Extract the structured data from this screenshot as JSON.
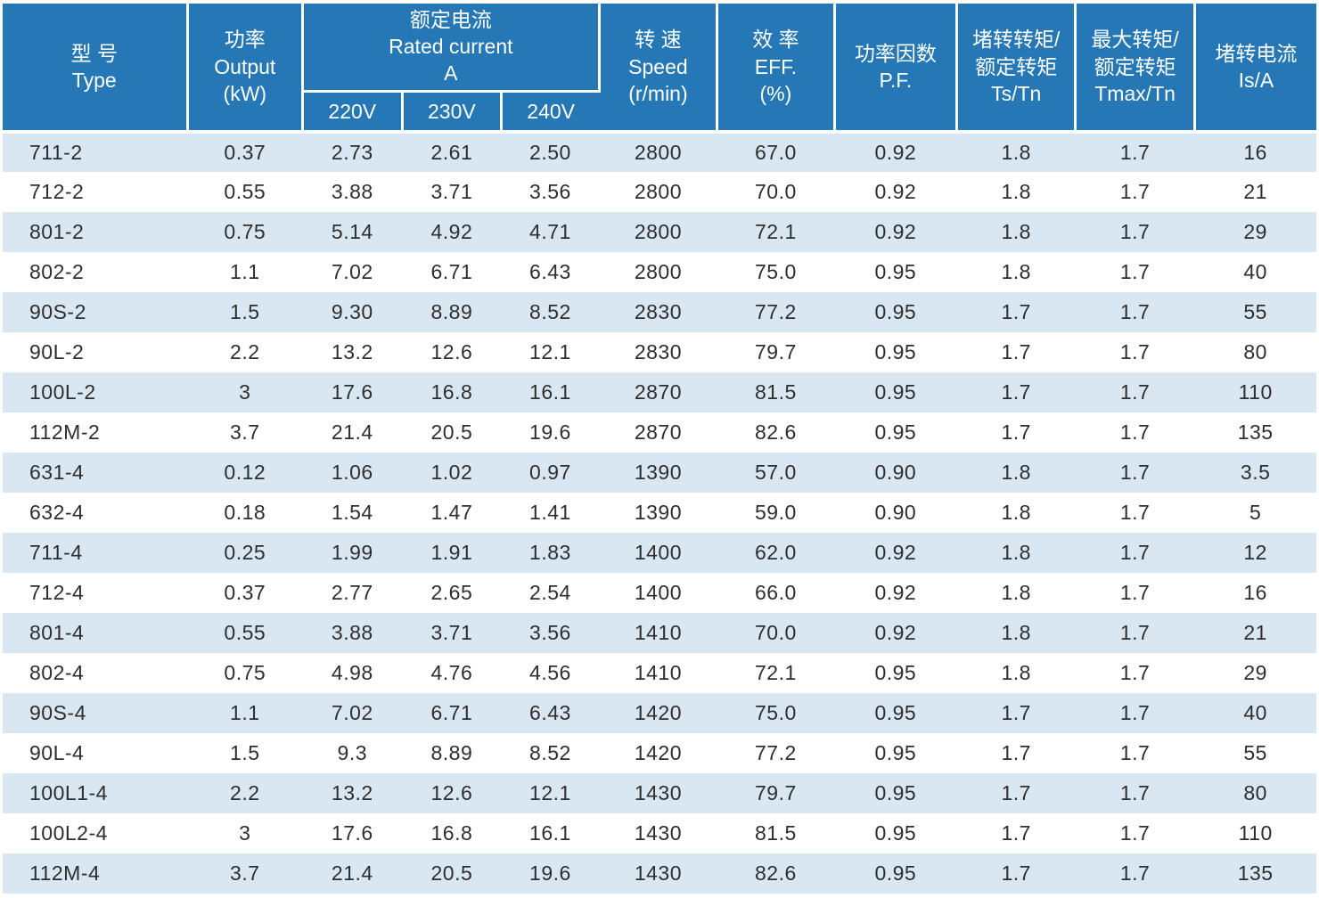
{
  "title": "Motor specification table",
  "colors": {
    "header_bg": "#2578b5",
    "header_text": "#ffffff",
    "row_alt_bg": "#d9e7f2",
    "row_bg": "#ffffff",
    "text": "#2e2e2e"
  },
  "table": {
    "header": {
      "type": "型 号\nType",
      "output": "功率\nOutput\n(kW)",
      "rated_current": "额定电流\nRated current\nA",
      "v220": "220V",
      "v230": "230V",
      "v240": "240V",
      "speed": "转 速\nSpeed\n(r/min)",
      "eff": "效 率\nEFF.\n(%)",
      "pf": "功率因数\nP.F.",
      "ts_tn": "堵转转矩/\n额定转矩\nTs/Tn",
      "tmax_tn": "最大转矩/\n额定转矩\nTmax/Tn",
      "is_a": "堵转电流\nIs/A"
    },
    "column_keys": [
      "type",
      "output",
      "current_220v",
      "current_230v",
      "current_240v",
      "speed",
      "eff",
      "pf",
      "ts_tn",
      "tmax_tn",
      "is_a"
    ],
    "rows": [
      [
        "711-2",
        "0.37",
        "2.73",
        "2.61",
        "2.50",
        "2800",
        "67.0",
        "0.92",
        "1.8",
        "1.7",
        "16"
      ],
      [
        "712-2",
        "0.55",
        "3.88",
        "3.71",
        "3.56",
        "2800",
        "70.0",
        "0.92",
        "1.8",
        "1.7",
        "21"
      ],
      [
        "801-2",
        "0.75",
        "5.14",
        "4.92",
        "4.71",
        "2800",
        "72.1",
        "0.92",
        "1.8",
        "1.7",
        "29"
      ],
      [
        "802-2",
        "1.1",
        "7.02",
        "6.71",
        "6.43",
        "2800",
        "75.0",
        "0.95",
        "1.8",
        "1.7",
        "40"
      ],
      [
        "90S-2",
        "1.5",
        "9.30",
        "8.89",
        "8.52",
        "2830",
        "77.2",
        "0.95",
        "1.7",
        "1.7",
        "55"
      ],
      [
        "90L-2",
        "2.2",
        "13.2",
        "12.6",
        "12.1",
        "2830",
        "79.7",
        "0.95",
        "1.7",
        "1.7",
        "80"
      ],
      [
        "100L-2",
        "3",
        "17.6",
        "16.8",
        "16.1",
        "2870",
        "81.5",
        "0.95",
        "1.7",
        "1.7",
        "110"
      ],
      [
        "112M-2",
        "3.7",
        "21.4",
        "20.5",
        "19.6",
        "2870",
        "82.6",
        "0.95",
        "1.7",
        "1.7",
        "135"
      ],
      [
        "631-4",
        "0.12",
        "1.06",
        "1.02",
        "0.97",
        "1390",
        "57.0",
        "0.90",
        "1.8",
        "1.7",
        "3.5"
      ],
      [
        "632-4",
        "0.18",
        "1.54",
        "1.47",
        "1.41",
        "1390",
        "59.0",
        "0.90",
        "1.8",
        "1.7",
        "5"
      ],
      [
        "711-4",
        "0.25",
        "1.99",
        "1.91",
        "1.83",
        "1400",
        "62.0",
        "0.92",
        "1.8",
        "1.7",
        "12"
      ],
      [
        "712-4",
        "0.37",
        "2.77",
        "2.65",
        "2.54",
        "1400",
        "66.0",
        "0.92",
        "1.8",
        "1.7",
        "16"
      ],
      [
        "801-4",
        "0.55",
        "3.88",
        "3.71",
        "3.56",
        "1410",
        "70.0",
        "0.92",
        "1.8",
        "1.7",
        "21"
      ],
      [
        "802-4",
        "0.75",
        "4.98",
        "4.76",
        "4.56",
        "1410",
        "72.1",
        "0.95",
        "1.8",
        "1.7",
        "29"
      ],
      [
        "90S-4",
        "1.1",
        "7.02",
        "6.71",
        "6.43",
        "1420",
        "75.0",
        "0.95",
        "1.7",
        "1.7",
        "40"
      ],
      [
        "90L-4",
        "1.5",
        "9.3",
        "8.89",
        "8.52",
        "1420",
        "77.2",
        "0.95",
        "1.7",
        "1.7",
        "55"
      ],
      [
        "100L1-4",
        "2.2",
        "13.2",
        "12.6",
        "12.1",
        "1430",
        "79.7",
        "0.95",
        "1.7",
        "1.7",
        "80"
      ],
      [
        "100L2-4",
        "3",
        "17.6",
        "16.8",
        "16.1",
        "1430",
        "81.5",
        "0.95",
        "1.7",
        "1.7",
        "110"
      ],
      [
        "112M-4",
        "3.7",
        "21.4",
        "20.5",
        "19.6",
        "1430",
        "82.6",
        "0.95",
        "1.7",
        "1.7",
        "135"
      ]
    ]
  }
}
